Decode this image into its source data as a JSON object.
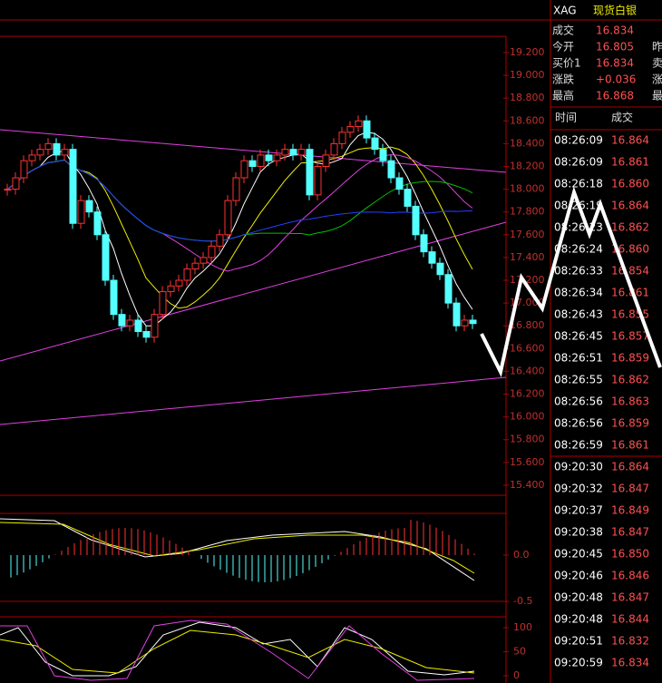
{
  "header": {
    "symbol": "XAG",
    "name": "现货白银"
  },
  "quote": [
    [
      "成交",
      "16.834",
      ""
    ],
    [
      "今开",
      "16.805",
      "昨"
    ],
    [
      "买价1",
      "16.834",
      "卖"
    ],
    [
      "涨跌",
      "+0.036",
      "涨"
    ],
    [
      "最高",
      "16.868",
      "最"
    ]
  ],
  "trades": {
    "headers": [
      "时间",
      "成交"
    ],
    "rows": [
      [
        "08:26:09",
        "16.864"
      ],
      [
        "08:26:09",
        "16.861"
      ],
      [
        "08:26:18",
        "16.860"
      ],
      [
        "08:26:19",
        "16.864"
      ],
      [
        "08:26:23",
        "16.862"
      ],
      [
        "08:26:24",
        "16.860"
      ],
      [
        "08:26:33",
        "16.854"
      ],
      [
        "08:26:34",
        "16.861"
      ],
      [
        "08:26:43",
        "16.855"
      ],
      [
        "08:26:45",
        "16.857"
      ],
      [
        "08:26:51",
        "16.859"
      ],
      [
        "08:26:55",
        "16.862"
      ],
      [
        "08:26:56",
        "16.863"
      ],
      [
        "08:26:56",
        "16.859"
      ],
      [
        "08:26:59",
        "16.861"
      ],
      [
        "09:20:30",
        "16.864"
      ],
      [
        "09:20:32",
        "16.847"
      ],
      [
        "09:20:37",
        "16.849"
      ],
      [
        "09:20:38",
        "16.847"
      ],
      [
        "09:20:45",
        "16.850"
      ],
      [
        "09:20:46",
        "16.846"
      ],
      [
        "09:20:48",
        "16.847"
      ],
      [
        "09:20:48",
        "16.844"
      ],
      [
        "09:20:51",
        "16.832"
      ],
      [
        "09:20:59",
        "16.834"
      ]
    ]
  },
  "chart_data": {
    "type": "candlestick",
    "closes": [
      18.0,
      18.1,
      18.25,
      18.3,
      18.35,
      18.4,
      18.3,
      18.35,
      17.7,
      17.9,
      17.8,
      17.6,
      17.2,
      16.9,
      16.8,
      16.85,
      16.75,
      16.7,
      16.9,
      17.1,
      17.15,
      17.2,
      17.3,
      17.35,
      17.4,
      17.5,
      17.6,
      17.9,
      18.1,
      18.25,
      18.2,
      18.3,
      18.25,
      18.3,
      18.35,
      18.3,
      18.35,
      17.95,
      18.2,
      18.3,
      18.4,
      18.5,
      18.55,
      18.6,
      18.45,
      18.35,
      18.25,
      18.1,
      18.0,
      17.85,
      17.6,
      17.45,
      17.35,
      17.25,
      17.0,
      16.8,
      16.85,
      16.82
    ],
    "ylim": [
      15.32,
      19.343
    ],
    "yticks": [
      {
        "value": 19.2,
        "label": "19.200"
      },
      {
        "value": 19.0,
        "label": "19.000"
      },
      {
        "value": 18.8,
        "label": "18.800"
      },
      {
        "value": 18.6,
        "label": "18.600"
      },
      {
        "value": 18.4,
        "label": "18.400"
      },
      {
        "value": 18.2,
        "label": "18.200"
      },
      {
        "value": 18.0,
        "label": "18.000"
      },
      {
        "value": 17.8,
        "label": "17.800"
      },
      {
        "value": 17.6,
        "label": "17.600"
      },
      {
        "value": 17.4,
        "label": "17.400"
      },
      {
        "value": 17.2,
        "label": "17.200"
      },
      {
        "value": 17.0,
        "label": "17.000"
      },
      {
        "value": 16.8,
        "label": "16.800"
      },
      {
        "value": 16.6,
        "label": "16.600"
      },
      {
        "value": 16.4,
        "label": "16.400"
      },
      {
        "value": 16.2,
        "label": "16.200"
      },
      {
        "value": 16.0,
        "label": "16.000"
      },
      {
        "value": 15.8,
        "label": "15.800"
      },
      {
        "value": 15.6,
        "label": "15.600"
      },
      {
        "value": 15.4,
        "label": "15.400"
      }
    ],
    "macd_ticks": [
      {
        "value": 0,
        "label": "0.0"
      },
      {
        "value": -0.5,
        "label": "-0.5"
      }
    ],
    "kdj_ticks": [
      100,
      50,
      0
    ]
  }
}
